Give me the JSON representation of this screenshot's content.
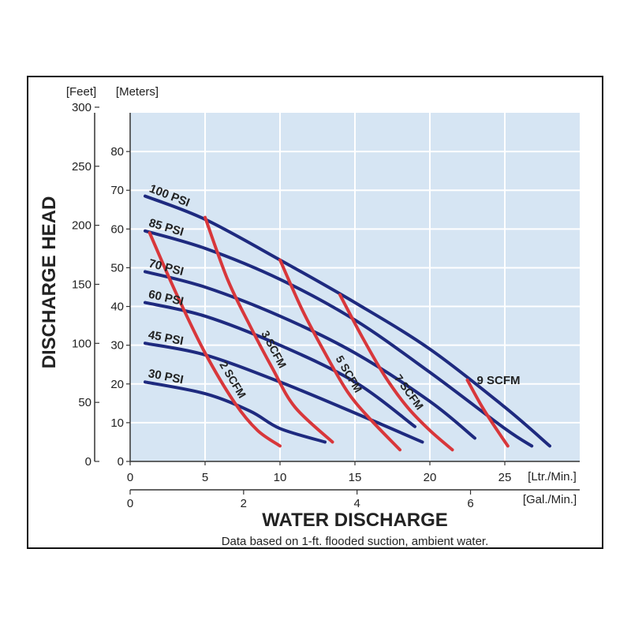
{
  "colors": {
    "plot_background": "#d6e5f3",
    "grid": "#ffffff",
    "psi_curve": "#1e2a7f",
    "scfm_curve": "#d8373b",
    "axis": "#333333"
  },
  "chart_data": {
    "type": "line",
    "title": "",
    "xlabel": "WATER DISCHARGE",
    "ylabel": "DISCHARGE HEAD",
    "note": "Data based on 1-ft. flooded suction, ambient water.",
    "grid": true,
    "x_axis_primary": {
      "unit_label": "[Ltr./Min.]",
      "range": [
        0,
        30
      ],
      "ticks": [
        "0",
        "5",
        "10",
        "15",
        "20",
        "25"
      ]
    },
    "x_axis_secondary": {
      "unit_label": "[Gal./Min.]",
      "ticks": [
        "0",
        "2",
        "4",
        "6"
      ]
    },
    "y_axis_meters": {
      "unit_label": "[Meters]",
      "range": [
        0,
        90
      ],
      "ticks": [
        "0",
        "10",
        "20",
        "30",
        "40",
        "50",
        "60",
        "70",
        "80"
      ]
    },
    "y_axis_feet": {
      "unit_label": "[Feet]",
      "ticks": [
        "0",
        "50",
        "100",
        "150",
        "200",
        "250",
        "300"
      ]
    },
    "psi_series": [
      {
        "name": "100 PSI",
        "x": [
          1,
          5,
          10,
          15,
          20,
          25,
          28
        ],
        "y": [
          68.5,
          62.5,
          52,
          41,
          29,
          14,
          4
        ]
      },
      {
        "name": "85 PSI",
        "x": [
          1,
          5,
          10,
          15,
          20,
          25,
          26.8
        ],
        "y": [
          59.5,
          55,
          47,
          36.5,
          23,
          8.5,
          4
        ]
      },
      {
        "name": "70 PSI",
        "x": [
          1,
          5,
          10,
          15,
          20,
          23
        ],
        "y": [
          49,
          45,
          37.5,
          28,
          15.5,
          6
        ]
      },
      {
        "name": "60 PSI",
        "x": [
          1,
          5,
          10,
          15,
          19
        ],
        "y": [
          41,
          37.5,
          30,
          20.5,
          9
        ]
      },
      {
        "name": "45 PSI",
        "x": [
          1,
          5,
          10,
          15,
          19.5
        ],
        "y": [
          30.5,
          27.5,
          20.5,
          12.5,
          5
        ]
      },
      {
        "name": "30 PSI",
        "x": [
          1,
          5,
          8,
          10,
          13
        ],
        "y": [
          20.5,
          17.5,
          13,
          8.5,
          5
        ]
      }
    ],
    "scfm_series": [
      {
        "name": "2 SCFM",
        "x": [
          1.3,
          3,
          5,
          7,
          8.5,
          10
        ],
        "y": [
          59,
          44,
          28,
          15,
          8,
          4
        ]
      },
      {
        "name": "3 SCFM",
        "x": [
          5,
          6.5,
          8,
          9.5,
          11,
          13.5
        ],
        "y": [
          63,
          47,
          35,
          24,
          14,
          5
        ]
      },
      {
        "name": "5 SCFM",
        "x": [
          10,
          11.5,
          13,
          14.5,
          16,
          18
        ],
        "y": [
          52,
          39,
          28,
          18,
          11,
          3
        ]
      },
      {
        "name": "7 SCFM",
        "x": [
          14,
          15.5,
          17,
          18.5,
          20,
          21.5
        ],
        "y": [
          43,
          32,
          22,
          14,
          8,
          3
        ]
      },
      {
        "name": "9 SCFM",
        "x": [
          22.5,
          23.5,
          24.5,
          25.2
        ],
        "y": [
          21,
          14,
          8,
          4
        ]
      }
    ]
  }
}
